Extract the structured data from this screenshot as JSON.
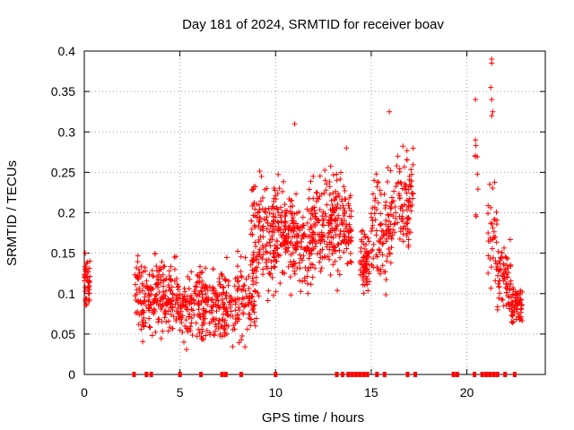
{
  "chart_data": {
    "type": "scatter",
    "title": "Day 181 of 2024, SRMTID for receiver boav",
    "xlabel": "GPS time / hours",
    "ylabel": "SRMTID / TECUs",
    "xlim": [
      0,
      24.1
    ],
    "ylim": [
      0,
      0.4
    ],
    "xticks": [
      0,
      5,
      10,
      15,
      20
    ],
    "yticks": [
      0,
      0.05,
      0.1,
      0.15,
      0.2,
      0.25,
      0.3,
      0.35,
      0.4
    ],
    "xtick_labels": [
      "0",
      "5",
      "10",
      "15",
      "20"
    ],
    "ytick_labels": [
      "0",
      "0.05",
      "0.1",
      "0.15",
      "0.2",
      "0.25",
      "0.3",
      "0.35",
      "0.4"
    ],
    "grid": true,
    "marker": "+",
    "color": "#ff0000",
    "series": [
      {
        "name": "SRMTID",
        "segments": [
          {
            "x": [
              0.0,
              0.3
            ],
            "y_mean": 0.115,
            "y_sd": 0.02,
            "n": 45
          },
          {
            "x": [
              2.6,
              5.0
            ],
            "y_mean": 0.095,
            "y_sd": 0.03,
            "n": 230
          },
          {
            "x": [
              5.0,
              7.0
            ],
            "y_mean": 0.085,
            "y_sd": 0.03,
            "n": 190
          },
          {
            "x": [
              7.0,
              9.0
            ],
            "y_mean": 0.09,
            "y_sd": 0.035,
            "n": 170
          },
          {
            "x": [
              8.7,
              9.8
            ],
            "y_mean": 0.17,
            "y_sd": 0.05,
            "n": 110
          },
          {
            "x": [
              9.8,
              12.0
            ],
            "y_mean": 0.17,
            "y_sd": 0.04,
            "n": 260
          },
          {
            "x": [
              12.0,
              14.0
            ],
            "y_mean": 0.19,
            "y_sd": 0.04,
            "n": 220
          },
          {
            "x": [
              14.4,
              14.9
            ],
            "y_mean": 0.135,
            "y_sd": 0.03,
            "n": 70
          },
          {
            "x": [
              15.0,
              16.0
            ],
            "y_mean": 0.175,
            "y_sd": 0.045,
            "n": 90
          },
          {
            "x": [
              16.0,
              17.2
            ],
            "y_mean": 0.215,
            "y_sd": 0.04,
            "n": 110
          },
          {
            "x": [
              20.4,
              20.6
            ],
            "y_mean": 0.26,
            "y_sd": 0.05,
            "n": 8
          },
          {
            "x": [
              21.1,
              21.6
            ],
            "y_mean": 0.17,
            "y_sd": 0.05,
            "n": 35
          },
          {
            "x": [
              21.6,
              22.3
            ],
            "y_mean": 0.12,
            "y_sd": 0.03,
            "n": 70
          },
          {
            "x": [
              22.3,
              22.9
            ],
            "y_mean": 0.085,
            "y_sd": 0.015,
            "n": 65
          }
        ],
        "highlights": [
          {
            "x": 0.05,
            "y": 0.15
          },
          {
            "x": 11.0,
            "y": 0.31
          },
          {
            "x": 13.7,
            "y": 0.28
          },
          {
            "x": 15.95,
            "y": 0.325
          },
          {
            "x": 20.45,
            "y": 0.34
          },
          {
            "x": 20.45,
            "y": 0.29
          },
          {
            "x": 21.3,
            "y": 0.39
          },
          {
            "x": 21.3,
            "y": 0.385
          },
          {
            "x": 21.25,
            "y": 0.355
          },
          {
            "x": 21.3,
            "y": 0.34
          },
          {
            "x": 21.35,
            "y": 0.325
          },
          {
            "x": 21.3,
            "y": 0.32
          }
        ]
      },
      {
        "name": "zero-markers",
        "x": [
          2.6,
          3.25,
          3.5,
          5.0,
          6.1,
          7.2,
          7.4,
          8.2,
          10.0,
          13.2,
          13.5,
          13.8,
          14.0,
          14.2,
          14.4,
          14.6,
          14.8,
          15.3,
          15.7,
          16.9,
          17.3,
          19.3,
          19.5,
          20.4,
          20.8,
          21.0,
          21.2,
          21.4,
          21.6,
          22.0,
          22.5
        ]
      }
    ]
  }
}
